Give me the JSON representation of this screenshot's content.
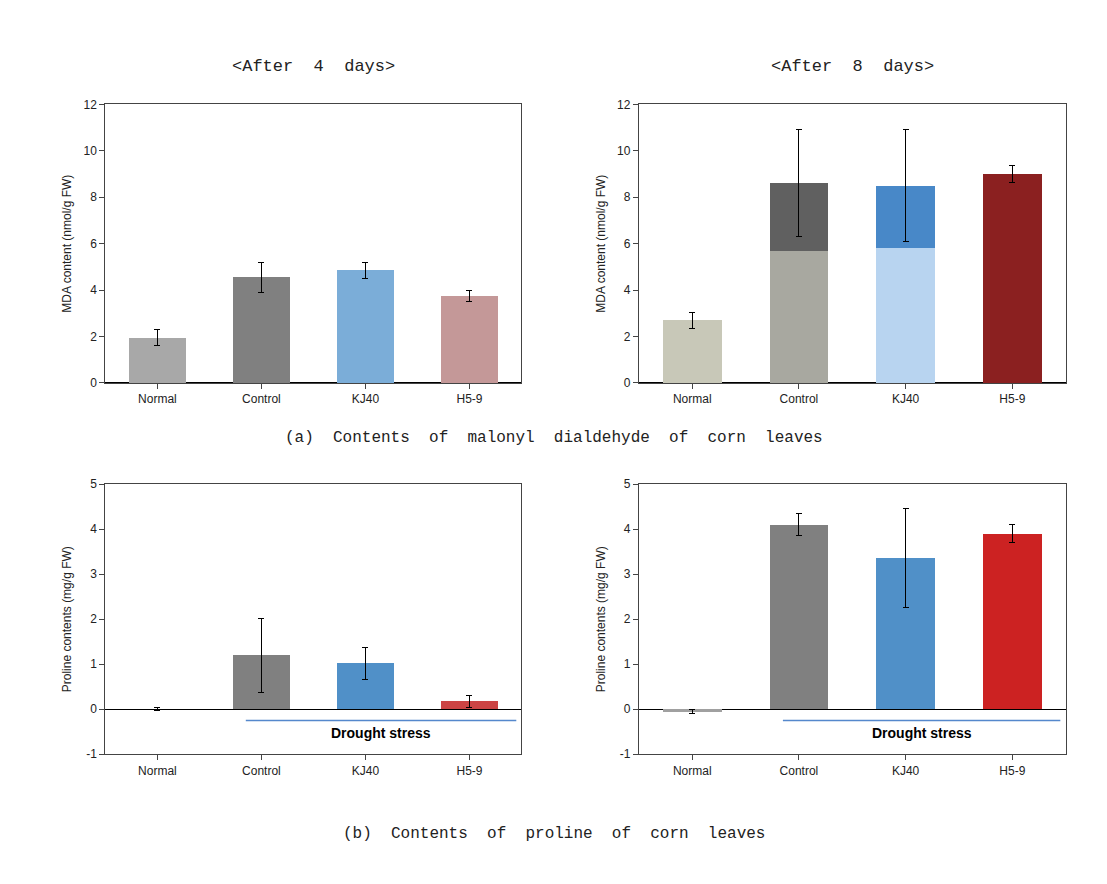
{
  "chart_data": [
    {
      "type": "bar",
      "title": "<After  4  days>",
      "categories": [
        "Normal",
        "Control",
        "KJ40",
        "H5-9"
      ],
      "values": [
        1.95,
        4.55,
        4.85,
        3.75
      ],
      "errors": [
        0.35,
        0.65,
        0.35,
        0.25
      ],
      "colors": [
        "#a8a8a8",
        "#808080",
        "#7badd8",
        "#c49898"
      ],
      "ylabel": "MDA content (nmol/g FW)",
      "ylim": [
        0,
        12
      ],
      "yticks": [
        0,
        2,
        4,
        6,
        8,
        10,
        12
      ],
      "grid": false
    },
    {
      "type": "bar",
      "title": "<After  8  days>",
      "categories": [
        "Normal",
        "Control",
        "KJ40",
        "H5-9"
      ],
      "stacked": true,
      "series": [
        {
          "colors": [
            "#c8c8b8",
            "#a8a8a0",
            "#b8d4f0",
            "#8b2020"
          ],
          "values": [
            2.7,
            5.7,
            5.8,
            9.0
          ]
        },
        {
          "colors": [
            "#c8c8b8",
            "#606060",
            "#4888c8",
            "#8b2020"
          ],
          "values": [
            0,
            2.9,
            2.7,
            0
          ],
          "errors": [
            0.35,
            2.3,
            2.4,
            0.35
          ]
        }
      ],
      "ylabel": "MDA content (nmol/g FW)",
      "ylim": [
        0,
        12
      ],
      "yticks": [
        0,
        2,
        4,
        6,
        8,
        10,
        12
      ],
      "grid": false
    },
    {
      "type": "bar",
      "categories": [
        "Normal",
        "Control",
        "KJ40",
        "H5-9"
      ],
      "values": [
        0.0,
        1.2,
        1.02,
        0.18
      ],
      "errors": [
        0.03,
        0.82,
        0.35,
        0.13
      ],
      "colors": [
        "#a0a0a0",
        "#808080",
        "#5090c8",
        "#cc4444"
      ],
      "ylabel": "Proline contents (mg/g FW)",
      "ylim": [
        -1,
        5
      ],
      "yticks": [
        -1,
        0,
        1,
        2,
        3,
        4,
        5
      ],
      "grid": false,
      "annotations": [
        "Drought stress"
      ]
    },
    {
      "type": "bar",
      "categories": [
        "Normal",
        "Control",
        "KJ40",
        "H5-9"
      ],
      "values": [
        -0.05,
        4.1,
        3.35,
        3.9
      ],
      "errors": [
        0.05,
        0.25,
        1.1,
        0.2
      ],
      "colors": [
        "#a0a0a0",
        "#808080",
        "#5090c8",
        "#cc2222"
      ],
      "ylabel": "Proline contents (mg/g FW)",
      "ylim": [
        -1,
        5
      ],
      "yticks": [
        -1,
        0,
        1,
        2,
        3,
        4,
        5
      ],
      "grid": false,
      "annotations": [
        "Drought stress"
      ]
    }
  ],
  "captions": [
    "(a)  Contents  of  malonyl  dialdehyde  of  corn  leaves",
    "(b)  Contents  of  proline  of  corn  leaves"
  ]
}
